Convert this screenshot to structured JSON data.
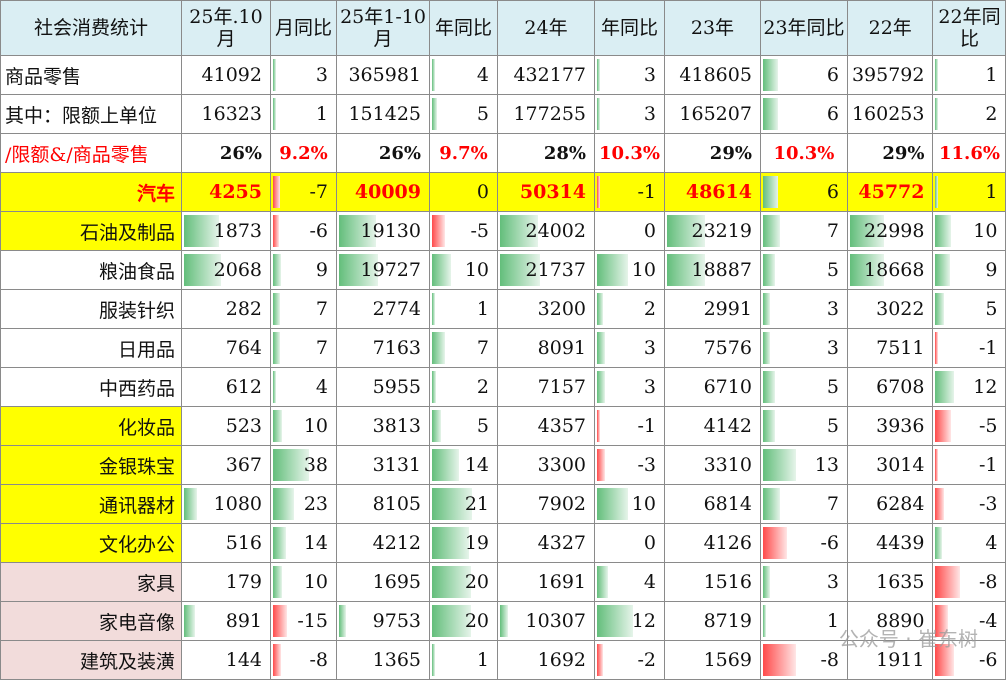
{
  "header": [
    "社会消费统计",
    "25年.10月",
    "月同比",
    "25年1-10月",
    "年同比",
    "24年",
    "年同比",
    "23年",
    "23年同比",
    "22年",
    "22年同比"
  ],
  "rows": [
    {
      "label": "商品零售",
      "cells": [
        "41092",
        "3",
        "365981",
        "4",
        "432177",
        "3",
        "418605",
        "6",
        "395792",
        "1"
      ],
      "bars": [
        null,
        0.04,
        null,
        0.05,
        null,
        0.04,
        null,
        0.18,
        null,
        0.03
      ]
    },
    {
      "label": "其中：限额上单位",
      "cells": [
        "16323",
        "1",
        "151425",
        "5",
        "177255",
        "3",
        "165207",
        "6",
        "160253",
        "2"
      ],
      "bars": [
        null,
        0.02,
        null,
        0.07,
        null,
        0.04,
        null,
        0.18,
        null,
        0.04
      ]
    },
    {
      "label": "/限额&/商品零售",
      "cells": [
        "26%",
        "9.2%",
        "26%",
        "9.7%",
        "28%",
        "10.3%",
        "29%",
        "10.3%",
        "29%",
        "11.6%"
      ],
      "bars": [
        null,
        null,
        null,
        null,
        null,
        null,
        null,
        null,
        null,
        null
      ]
    },
    {
      "label": "汽车",
      "cells": [
        "4255",
        "-7",
        "40009",
        "0",
        "50314",
        "-1",
        "48614",
        "6",
        "45772",
        "1"
      ],
      "bars": [
        null,
        -0.1,
        null,
        0,
        null,
        -0.02,
        null,
        0.18,
        null,
        0.03
      ]
    },
    {
      "label": "石油及制品",
      "cells": [
        "1873",
        "-6",
        "19130",
        "-5",
        "24002",
        "0",
        "23219",
        "7",
        "22998",
        "10"
      ],
      "bars": [
        0.4,
        -0.09,
        0.4,
        -0.2,
        0.4,
        0,
        0.4,
        0.2,
        0.4,
        0.22
      ]
    },
    {
      "label": "粮油食品",
      "cells": [
        "2068",
        "9",
        "19727",
        "10",
        "21737",
        "10",
        "18887",
        "5",
        "18668",
        "9"
      ],
      "bars": [
        0.42,
        0.12,
        0.42,
        0.28,
        0.42,
        0.45,
        0.4,
        0.14,
        0.4,
        0.2
      ]
    },
    {
      "label": "服装针织",
      "cells": [
        "282",
        "7",
        "2774",
        "1",
        "3200",
        "2",
        "2991",
        "3",
        "3022",
        "5"
      ],
      "bars": [
        null,
        0.1,
        null,
        0.03,
        null,
        0.08,
        null,
        0.08,
        null,
        0.12
      ]
    },
    {
      "label": "日用品",
      "cells": [
        "764",
        "7",
        "7163",
        "7",
        "8091",
        "3",
        "7576",
        "3",
        "7511",
        "-1"
      ],
      "bars": [
        null,
        0.1,
        null,
        0.2,
        null,
        0.12,
        null,
        0.08,
        null,
        -0.03
      ]
    },
    {
      "label": "中西药品",
      "cells": [
        "612",
        "4",
        "5955",
        "2",
        "7157",
        "3",
        "6710",
        "5",
        "6708",
        "12"
      ],
      "bars": [
        null,
        0.05,
        null,
        0.06,
        null,
        0.12,
        null,
        0.14,
        null,
        0.26
      ]
    },
    {
      "label": "化妆品",
      "cells": [
        "523",
        "10",
        "3813",
        "5",
        "4357",
        "-1",
        "4142",
        "5",
        "3936",
        "-5"
      ],
      "bars": [
        null,
        0.14,
        null,
        0.14,
        null,
        -0.04,
        null,
        0.14,
        null,
        -0.22
      ]
    },
    {
      "label": "金银珠宝",
      "cells": [
        "367",
        "38",
        "3131",
        "14",
        "3300",
        "-3",
        "3310",
        "13",
        "3014",
        "-1"
      ],
      "bars": [
        null,
        0.55,
        null,
        0.4,
        null,
        -0.12,
        null,
        0.38,
        null,
        -0.04
      ]
    },
    {
      "label": "通讯器材",
      "cells": [
        "1080",
        "23",
        "8105",
        "21",
        "7902",
        "10",
        "6814",
        "7",
        "6284",
        "-3"
      ],
      "bars": [
        0.15,
        0.33,
        null,
        0.6,
        null,
        0.45,
        null,
        0.2,
        null,
        -0.12
      ]
    },
    {
      "label": "文化办公",
      "cells": [
        "516",
        "14",
        "4212",
        "19",
        "4327",
        "0",
        "4126",
        "-6",
        "4439",
        "4"
      ],
      "bars": [
        null,
        0.2,
        null,
        0.55,
        null,
        0,
        null,
        -0.28,
        null,
        0.09
      ]
    },
    {
      "label": "家具",
      "cells": [
        "179",
        "10",
        "1695",
        "20",
        "1691",
        "4",
        "1516",
        "3",
        "1635",
        "-8"
      ],
      "bars": [
        null,
        0.14,
        null,
        0.58,
        null,
        0.16,
        null,
        0.08,
        null,
        -0.34
      ]
    },
    {
      "label": "家电音像",
      "cells": [
        "891",
        "-15",
        "9753",
        "20",
        "10307",
        "12",
        "8719",
        "1",
        "8890",
        "-4"
      ],
      "bars": [
        0.12,
        -0.22,
        0.08,
        0.58,
        0.08,
        0.52,
        null,
        0.03,
        null,
        -0.17
      ]
    },
    {
      "label": "建筑及装潢",
      "cells": [
        "144",
        "-8",
        "1365",
        "1",
        "1692",
        "-2",
        "1569",
        "-8",
        "1911",
        "-6"
      ],
      "bars": [
        null,
        -0.12,
        null,
        0.03,
        null,
        -0.08,
        null,
        -0.38,
        null,
        -0.26
      ]
    }
  ],
  "watermark": "公众号 · 崔东树"
}
